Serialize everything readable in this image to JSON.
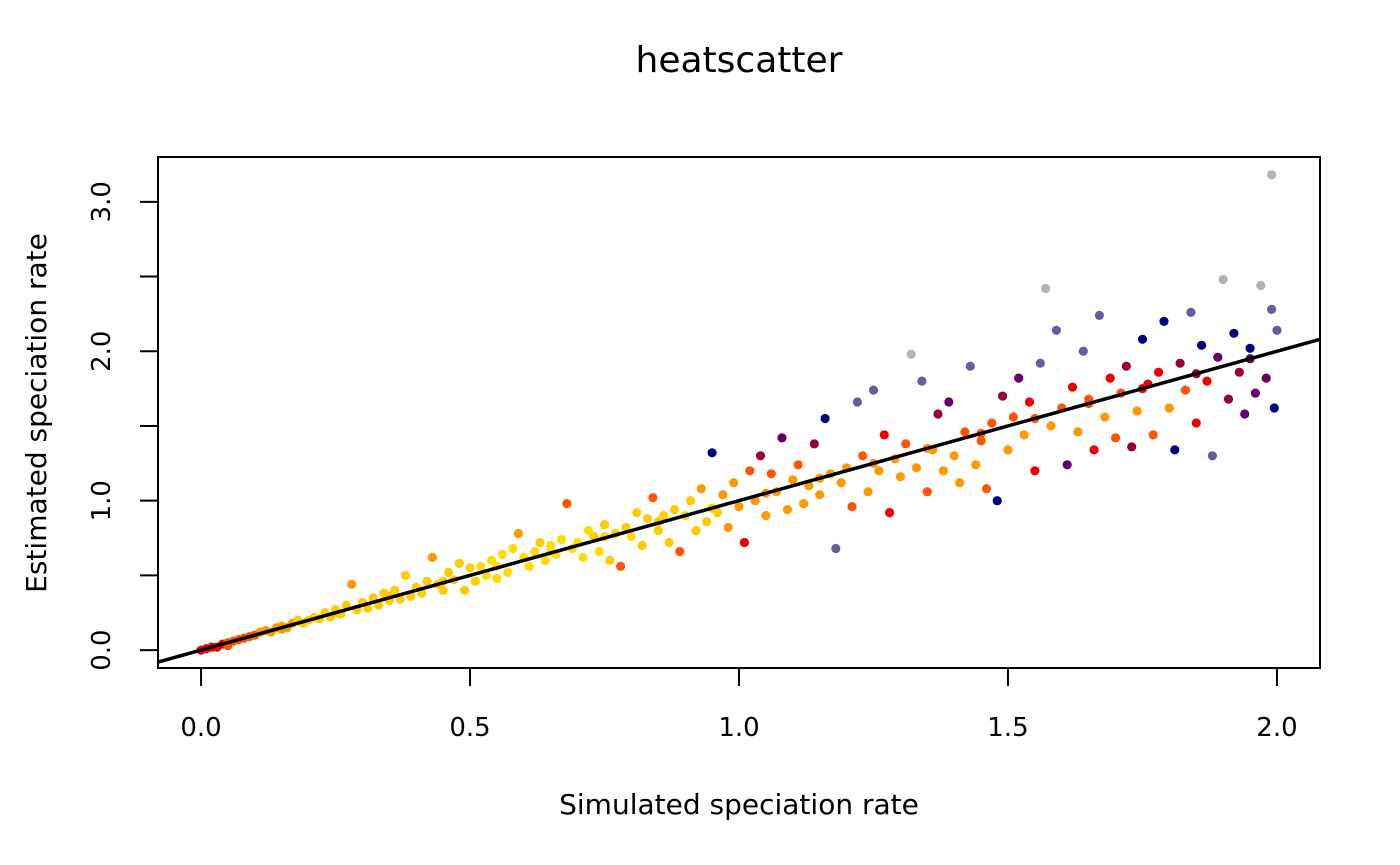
{
  "chart_data": {
    "type": "scatter",
    "title": "heatscatter",
    "xlabel": "Simulated speciation rate",
    "ylabel": "Estimated speciation rate",
    "xlim": [
      -0.08,
      2.08
    ],
    "ylim": [
      -0.12,
      3.3
    ],
    "x_ticks": [
      0.0,
      0.5,
      1.0,
      1.5,
      2.0
    ],
    "x_tick_labels": [
      "0.0",
      "0.5",
      "1.0",
      "1.5",
      "2.0"
    ],
    "y_ticks": [
      0.0,
      0.5,
      1.0,
      1.5,
      2.0,
      2.5,
      3.0
    ],
    "y_tick_labels": [
      "0.0",
      "",
      "1.0",
      "",
      "2.0",
      "",
      "3.0"
    ],
    "grid": false,
    "legend": "none",
    "fit_line": {
      "intercept": 0.0,
      "slope": 1.0
    },
    "density_colors": [
      "#B3B3B3",
      "#6060A0",
      "#000080",
      "#660066",
      "#990033",
      "#EE0000",
      "#FF5500",
      "#FF9900",
      "#FFCC00",
      "#FFDD00"
    ],
    "points": [
      [
        0.0,
        0.0,
        5
      ],
      [
        0.01,
        0.01,
        5
      ],
      [
        0.02,
        0.02,
        5
      ],
      [
        0.03,
        0.02,
        5
      ],
      [
        0.04,
        0.04,
        5
      ],
      [
        0.05,
        0.05,
        6
      ],
      [
        0.06,
        0.06,
        6
      ],
      [
        0.07,
        0.07,
        6
      ],
      [
        0.08,
        0.08,
        6
      ],
      [
        0.09,
        0.09,
        6
      ],
      [
        0.1,
        0.1,
        6
      ],
      [
        0.11,
        0.12,
        7
      ],
      [
        0.12,
        0.13,
        7
      ],
      [
        0.13,
        0.12,
        7
      ],
      [
        0.14,
        0.15,
        7
      ],
      [
        0.15,
        0.16,
        7
      ],
      [
        0.16,
        0.15,
        7
      ],
      [
        0.17,
        0.18,
        7
      ],
      [
        0.18,
        0.2,
        8
      ],
      [
        0.19,
        0.18,
        8
      ],
      [
        0.2,
        0.2,
        8
      ],
      [
        0.21,
        0.22,
        8
      ],
      [
        0.22,
        0.21,
        8
      ],
      [
        0.23,
        0.25,
        8
      ],
      [
        0.24,
        0.22,
        8
      ],
      [
        0.25,
        0.27,
        8
      ],
      [
        0.26,
        0.24,
        8
      ],
      [
        0.27,
        0.3,
        8
      ],
      [
        0.28,
        0.44,
        7
      ],
      [
        0.29,
        0.27,
        8
      ],
      [
        0.3,
        0.32,
        8
      ],
      [
        0.31,
        0.28,
        8
      ],
      [
        0.32,
        0.35,
        8
      ],
      [
        0.33,
        0.3,
        8
      ],
      [
        0.34,
        0.38,
        8
      ],
      [
        0.35,
        0.33,
        8
      ],
      [
        0.36,
        0.4,
        8
      ],
      [
        0.37,
        0.34,
        8
      ],
      [
        0.38,
        0.5,
        8
      ],
      [
        0.39,
        0.36,
        8
      ],
      [
        0.4,
        0.42,
        8
      ],
      [
        0.41,
        0.38,
        8
      ],
      [
        0.42,
        0.46,
        8
      ],
      [
        0.43,
        0.62,
        7
      ],
      [
        0.44,
        0.44,
        8
      ],
      [
        0.45,
        0.4,
        8
      ],
      [
        0.46,
        0.52,
        8
      ],
      [
        0.47,
        0.47,
        8
      ],
      [
        0.48,
        0.58,
        8
      ],
      [
        0.49,
        0.4,
        8
      ],
      [
        0.5,
        0.55,
        8
      ],
      [
        0.51,
        0.46,
        8
      ],
      [
        0.52,
        0.56,
        9
      ],
      [
        0.53,
        0.5,
        9
      ],
      [
        0.54,
        0.6,
        9
      ],
      [
        0.55,
        0.48,
        9
      ],
      [
        0.56,
        0.64,
        9
      ],
      [
        0.57,
        0.52,
        9
      ],
      [
        0.58,
        0.68,
        9
      ],
      [
        0.59,
        0.78,
        7
      ],
      [
        0.6,
        0.62,
        9
      ],
      [
        0.61,
        0.56,
        9
      ],
      [
        0.62,
        0.66,
        9
      ],
      [
        0.63,
        0.72,
        8
      ],
      [
        0.64,
        0.6,
        9
      ],
      [
        0.65,
        0.7,
        9
      ],
      [
        0.66,
        0.64,
        9
      ],
      [
        0.67,
        0.74,
        9
      ],
      [
        0.68,
        0.98,
        6
      ],
      [
        0.69,
        0.68,
        9
      ],
      [
        0.7,
        0.72,
        9
      ],
      [
        0.71,
        0.62,
        9
      ],
      [
        0.72,
        0.8,
        9
      ],
      [
        0.73,
        0.76,
        8
      ],
      [
        0.74,
        0.66,
        9
      ],
      [
        0.75,
        0.84,
        8
      ],
      [
        0.76,
        0.6,
        8
      ],
      [
        0.77,
        0.78,
        8
      ],
      [
        0.78,
        0.56,
        6
      ],
      [
        0.79,
        0.82,
        8
      ],
      [
        0.8,
        0.76,
        9
      ],
      [
        0.81,
        0.92,
        8
      ],
      [
        0.82,
        0.7,
        8
      ],
      [
        0.83,
        0.88,
        8
      ],
      [
        0.84,
        1.02,
        6
      ],
      [
        0.85,
        0.8,
        8
      ],
      [
        0.86,
        0.9,
        8
      ],
      [
        0.87,
        0.72,
        8
      ],
      [
        0.88,
        0.94,
        8
      ],
      [
        0.89,
        0.66,
        6
      ],
      [
        0.9,
        0.9,
        8
      ],
      [
        0.91,
        1.0,
        8
      ],
      [
        0.92,
        0.8,
        8
      ],
      [
        0.93,
        1.08,
        7
      ],
      [
        0.94,
        0.86,
        8
      ],
      [
        0.95,
        1.32,
        2
      ],
      [
        0.96,
        0.92,
        8
      ],
      [
        0.97,
        1.04,
        7
      ],
      [
        0.98,
        0.82,
        7
      ],
      [
        0.99,
        1.12,
        7
      ],
      [
        1.0,
        0.96,
        7
      ],
      [
        1.01,
        0.72,
        5
      ],
      [
        1.02,
        1.2,
        6
      ],
      [
        1.03,
        1.0,
        7
      ],
      [
        1.04,
        1.3,
        4
      ],
      [
        1.05,
        0.9,
        7
      ],
      [
        1.06,
        1.18,
        6
      ],
      [
        1.07,
        1.06,
        7
      ],
      [
        1.08,
        1.42,
        3
      ],
      [
        1.09,
        0.94,
        7
      ],
      [
        1.1,
        1.14,
        7
      ],
      [
        1.11,
        1.24,
        6
      ],
      [
        1.12,
        0.98,
        7
      ],
      [
        1.13,
        1.1,
        7
      ],
      [
        1.14,
        1.38,
        4
      ],
      [
        1.15,
        1.04,
        7
      ],
      [
        1.16,
        1.55,
        2
      ],
      [
        1.17,
        1.18,
        7
      ],
      [
        1.18,
        0.68,
        1
      ],
      [
        1.19,
        1.12,
        7
      ],
      [
        1.2,
        1.22,
        7
      ],
      [
        1.21,
        0.96,
        6
      ],
      [
        1.22,
        1.66,
        1
      ],
      [
        1.23,
        1.3,
        6
      ],
      [
        1.24,
        1.06,
        7
      ],
      [
        1.25,
        1.74,
        1
      ],
      [
        1.26,
        1.2,
        7
      ],
      [
        1.27,
        1.44,
        5
      ],
      [
        1.28,
        0.92,
        5
      ],
      [
        1.29,
        1.28,
        7
      ],
      [
        1.3,
        1.16,
        7
      ],
      [
        1.31,
        1.38,
        6
      ],
      [
        1.32,
        1.98,
        0
      ],
      [
        1.33,
        1.22,
        7
      ],
      [
        1.34,
        1.8,
        1
      ],
      [
        1.35,
        1.06,
        6
      ],
      [
        1.36,
        1.34,
        7
      ],
      [
        1.37,
        1.58,
        4
      ],
      [
        1.38,
        1.2,
        7
      ],
      [
        1.39,
        1.66,
        3
      ],
      [
        1.4,
        1.3,
        7
      ],
      [
        1.41,
        1.12,
        7
      ],
      [
        1.42,
        1.46,
        6
      ],
      [
        1.43,
        1.9,
        1
      ],
      [
        1.44,
        1.24,
        7
      ],
      [
        1.45,
        1.4,
        6
      ],
      [
        1.46,
        1.08,
        6
      ],
      [
        1.47,
        1.52,
        6
      ],
      [
        1.48,
        1.0,
        2
      ],
      [
        1.49,
        1.7,
        4
      ],
      [
        1.5,
        1.34,
        7
      ],
      [
        1.51,
        1.56,
        6
      ],
      [
        1.52,
        1.82,
        3
      ],
      [
        1.53,
        1.44,
        7
      ],
      [
        1.54,
        1.66,
        5
      ],
      [
        1.55,
        1.2,
        5
      ],
      [
        1.56,
        1.92,
        1
      ],
      [
        1.57,
        2.42,
        0
      ],
      [
        1.58,
        1.5,
        7
      ],
      [
        1.59,
        2.14,
        1
      ],
      [
        1.6,
        1.62,
        6
      ],
      [
        1.61,
        1.24,
        3
      ],
      [
        1.62,
        1.76,
        5
      ],
      [
        1.63,
        1.46,
        7
      ],
      [
        1.64,
        2.0,
        1
      ],
      [
        1.65,
        1.68,
        6
      ],
      [
        1.66,
        1.34,
        5
      ],
      [
        1.67,
        2.24,
        1
      ],
      [
        1.68,
        1.56,
        7
      ],
      [
        1.69,
        1.82,
        5
      ],
      [
        1.7,
        1.42,
        6
      ],
      [
        1.71,
        1.72,
        6
      ],
      [
        1.72,
        1.9,
        4
      ],
      [
        1.73,
        1.36,
        4
      ],
      [
        1.74,
        1.6,
        7
      ],
      [
        1.75,
        2.08,
        2
      ],
      [
        1.76,
        1.78,
        5
      ],
      [
        1.77,
        1.44,
        6
      ],
      [
        1.78,
        1.86,
        5
      ],
      [
        1.79,
        2.2,
        2
      ],
      [
        1.8,
        1.62,
        7
      ],
      [
        1.81,
        1.34,
        2
      ],
      [
        1.82,
        1.92,
        4
      ],
      [
        1.83,
        1.74,
        6
      ],
      [
        1.84,
        2.26,
        1
      ],
      [
        1.85,
        1.52,
        5
      ],
      [
        1.86,
        2.04,
        2
      ],
      [
        1.87,
        1.8,
        5
      ],
      [
        1.88,
        1.3,
        1
      ],
      [
        1.89,
        1.96,
        3
      ],
      [
        1.9,
        2.48,
        0
      ],
      [
        1.91,
        1.68,
        4
      ],
      [
        1.92,
        2.12,
        2
      ],
      [
        1.93,
        1.86,
        4
      ],
      [
        1.94,
        1.58,
        3
      ],
      [
        1.95,
        2.02,
        2
      ],
      [
        1.96,
        1.72,
        3
      ],
      [
        1.97,
        2.44,
        0
      ],
      [
        1.98,
        1.82,
        3
      ],
      [
        1.99,
        2.28,
        1
      ],
      [
        1.99,
        3.18,
        0
      ],
      [
        1.995,
        1.62,
        2
      ],
      [
        2.0,
        2.14,
        1
      ],
      [
        0.05,
        0.03,
        6
      ],
      [
        0.15,
        0.14,
        7
      ],
      [
        0.25,
        0.25,
        8
      ],
      [
        0.35,
        0.36,
        8
      ],
      [
        0.45,
        0.46,
        8
      ],
      [
        0.55,
        0.56,
        9
      ],
      [
        0.65,
        0.66,
        9
      ],
      [
        0.75,
        0.76,
        9
      ],
      [
        0.85,
        0.86,
        8
      ],
      [
        0.95,
        0.95,
        8
      ],
      [
        1.05,
        1.05,
        7
      ],
      [
        1.15,
        1.15,
        7
      ],
      [
        1.25,
        1.25,
        7
      ],
      [
        1.35,
        1.35,
        7
      ],
      [
        1.45,
        1.45,
        6
      ],
      [
        1.55,
        1.55,
        6
      ],
      [
        1.65,
        1.65,
        6
      ],
      [
        1.75,
        1.75,
        5
      ],
      [
        1.85,
        1.85,
        4
      ],
      [
        1.95,
        1.95,
        3
      ]
    ]
  }
}
